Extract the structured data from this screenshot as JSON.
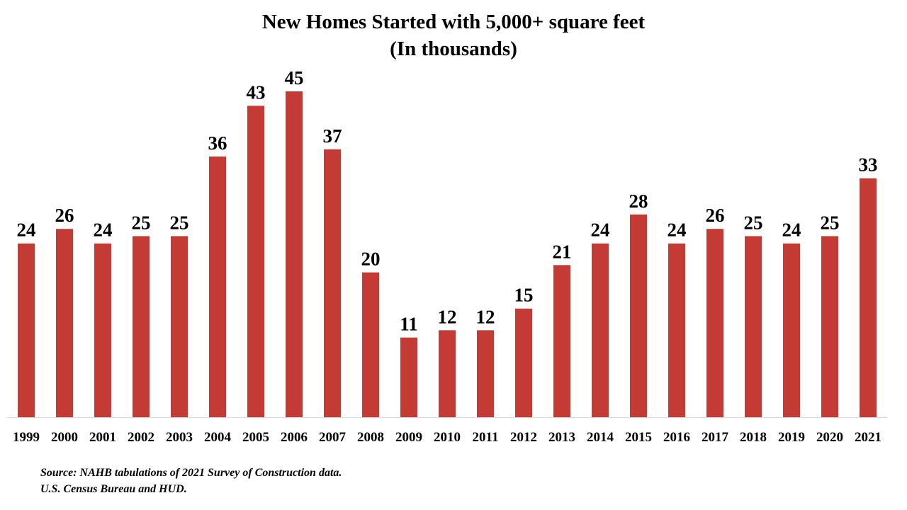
{
  "chart_data": {
    "type": "bar",
    "title": "New Homes Started with 5,000+ square feet",
    "subtitle": "(In thousands)",
    "categories": [
      "1999",
      "2000",
      "2001",
      "2002",
      "2003",
      "2004",
      "2005",
      "2006",
      "2007",
      "2008",
      "2009",
      "2010",
      "2011",
      "2012",
      "2013",
      "2014",
      "2015",
      "2016",
      "2017",
      "2018",
      "2019",
      "2020",
      "2021"
    ],
    "values": [
      24,
      26,
      24,
      25,
      25,
      36,
      43,
      45,
      37,
      20,
      11,
      12,
      12,
      15,
      21,
      24,
      28,
      24,
      26,
      25,
      24,
      25,
      33
    ],
    "ylim": [
      0,
      45
    ],
    "grid": false,
    "legend": "none",
    "bar_color": "#c43a35",
    "data_labels": true
  },
  "source": {
    "line1": "Source: NAHB tabulations of 2021 Survey of Construction data.",
    "line2": "U.S. Census Bureau and HUD."
  }
}
